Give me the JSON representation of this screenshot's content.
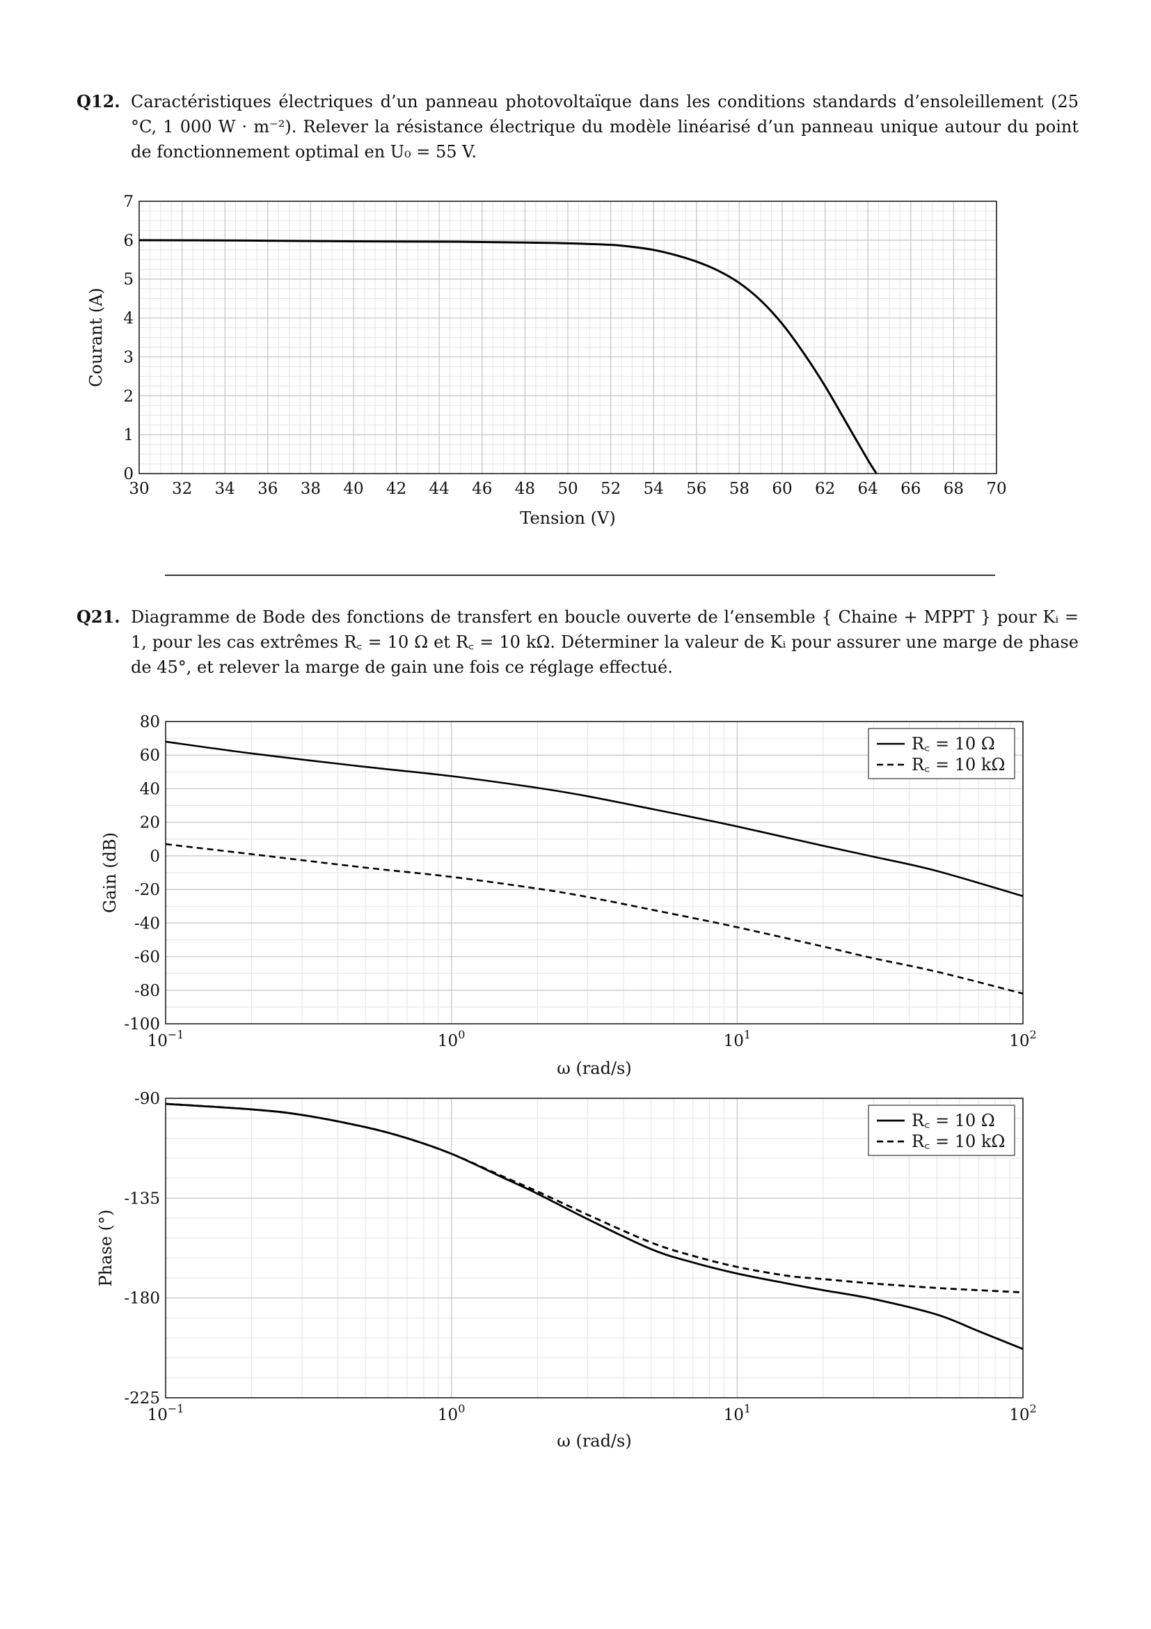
{
  "q12": {
    "num": "Q12.",
    "text": "Caractéristiques électriques d’un panneau photovoltaïque dans les conditions standards d’ensoleillement (25 °C, 1 000 W · m⁻²). Relever la résistance électrique du modèle linéarisé d’un panneau unique autour du point de fonctionnement optimal en U₀ = 55 V."
  },
  "q21": {
    "num": "Q21.",
    "text": "Diagramme de Bode des fonctions de transfert en boucle ouverte de l’ensemble { Chaine + MPPT } pour Kᵢ = 1, pour les cas extrêmes R꜀ = 10 Ω et R꜀ = 10 kΩ. Déterminer la valeur de Kᵢ pour assurer une marge de phase de 45°, et relever la marge de gain une fois ce réglage effectué."
  },
  "chart_data": [
    {
      "type": "line",
      "xlabel": "Tension (V)",
      "ylabel": "Courant (A)",
      "xlim": [
        30,
        70
      ],
      "ylim": [
        0,
        7
      ],
      "x_ticks": [
        "30",
        "32",
        "34",
        "36",
        "38",
        "40",
        "42",
        "44",
        "46",
        "48",
        "50",
        "52",
        "54",
        "56",
        "58",
        "60",
        "62",
        "64",
        "66",
        "68",
        "70"
      ],
      "y_ticks": [
        "0",
        "1",
        "2",
        "3",
        "4",
        "5",
        "6",
        "7"
      ],
      "grid": true,
      "series": [
        {
          "x": [
            30,
            35,
            40,
            45,
            48,
            50,
            52,
            53,
            54,
            55,
            56,
            57,
            58,
            59,
            60,
            61,
            62,
            63,
            64,
            64.4
          ],
          "y": [
            6.0,
            5.99,
            5.97,
            5.96,
            5.94,
            5.92,
            5.88,
            5.83,
            5.75,
            5.62,
            5.45,
            5.22,
            4.9,
            4.45,
            3.85,
            3.1,
            2.25,
            1.3,
            0.35,
            0.0
          ]
        }
      ]
    },
    {
      "type": "line",
      "xlabel": "ω (rad/s)",
      "ylabel": "Gain (dB)",
      "x_scale": "log",
      "xlim": [
        0.1,
        100
      ],
      "ylim": [
        -100,
        80
      ],
      "x_tick_base": "10",
      "x_tick_exponents": [
        "−1",
        "0",
        "1",
        "2"
      ],
      "y_ticks": [
        "80",
        "60",
        "40",
        "20",
        "0",
        "-20",
        "-40",
        "-60",
        "-80",
        "-100"
      ],
      "grid": true,
      "legend_position": "top-right",
      "series": [
        {
          "name": "R꜀ = 10 Ω",
          "style": "solid",
          "x": [
            0.1,
            0.2,
            0.5,
            1,
            2,
            3,
            5,
            7,
            10,
            20,
            30,
            50,
            100
          ],
          "y": [
            68,
            61,
            53,
            47.5,
            40.5,
            35.5,
            28,
            23,
            17.5,
            6,
            -0.5,
            -9,
            -24
          ]
        },
        {
          "name": "R꜀ = 10 kΩ",
          "style": "dashed",
          "x": [
            0.1,
            0.2,
            0.5,
            1,
            2,
            3,
            5,
            7,
            10,
            20,
            30,
            50,
            100
          ],
          "y": [
            7,
            1,
            -7,
            -12.5,
            -19.5,
            -24.5,
            -32,
            -37,
            -42.5,
            -54,
            -61,
            -69,
            -82
          ]
        }
      ]
    },
    {
      "type": "line",
      "xlabel": "ω (rad/s)",
      "ylabel": "Phase (°)",
      "x_scale": "log",
      "xlim": [
        0.1,
        100
      ],
      "ylim": [
        -225,
        -90
      ],
      "x_tick_base": "10",
      "x_tick_exponents": [
        "−1",
        "0",
        "1",
        "2"
      ],
      "y_ticks": [
        "-90",
        "-135",
        "-180",
        "-225"
      ],
      "grid": true,
      "legend_position": "top-right",
      "series": [
        {
          "name": "R꜀ = 10 Ω",
          "style": "solid",
          "x": [
            0.1,
            0.2,
            0.3,
            0.5,
            0.7,
            1,
            1.5,
            2,
            3,
            5,
            7,
            10,
            15,
            20,
            30,
            50,
            70,
            100
          ],
          "y": [
            -92.5,
            -95,
            -97.5,
            -103,
            -108,
            -115,
            -125.5,
            -133,
            -144.5,
            -158,
            -164,
            -169,
            -173.5,
            -176.5,
            -180.5,
            -187.5,
            -195,
            -203
          ]
        },
        {
          "name": "R꜀ = 10 kΩ",
          "style": "dashed",
          "x": [
            0.1,
            0.2,
            0.3,
            0.5,
            0.7,
            1,
            1.5,
            2,
            3,
            5,
            7,
            10,
            15,
            20,
            30,
            50,
            70,
            100
          ],
          "y": [
            -92.5,
            -95,
            -97.5,
            -103,
            -108,
            -115,
            -125,
            -132,
            -142.5,
            -155,
            -161,
            -166,
            -170,
            -171.5,
            -173.5,
            -175.5,
            -176.5,
            -177.5
          ]
        }
      ]
    }
  ]
}
